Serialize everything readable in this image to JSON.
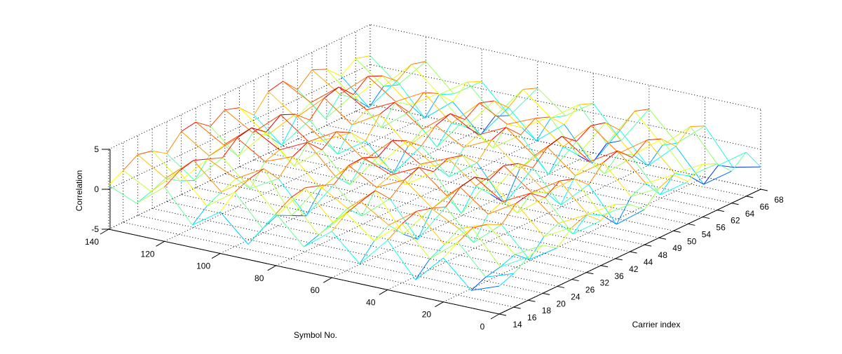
{
  "chart_data": {
    "type": "mesh3d",
    "title": "",
    "xlabel": "Symbol No.",
    "ylabel": "Carrier index",
    "zlabel": "Correlation",
    "x_ticks": [
      "0",
      "20",
      "40",
      "60",
      "80",
      "100",
      "120",
      "140"
    ],
    "y_ticks": [
      "14",
      "16",
      "18",
      "20",
      "24",
      "26",
      "32",
      "36",
      "42",
      "44",
      "48",
      "49",
      "50",
      "54",
      "56",
      "62",
      "64",
      "66",
      "68"
    ],
    "z_ticks": [
      "-5",
      "0",
      "5"
    ],
    "xlim": [
      0,
      140
    ],
    "zlim": [
      -5,
      5
    ],
    "grid": true,
    "colormap": "jet",
    "symbols": [
      0,
      10,
      20,
      30,
      40,
      50,
      60,
      70,
      80,
      90,
      100,
      110,
      120,
      130,
      140
    ],
    "carriers": [
      14,
      16,
      18,
      20,
      24,
      26,
      32,
      36,
      42,
      44,
      48,
      49,
      50,
      54,
      56,
      62,
      64,
      66,
      68
    ],
    "z": [
      [
        -1.5,
        -2.8,
        0.5,
        -3.0,
        1.2,
        -2.5,
        0.8,
        -1.9,
        1.5,
        -3.1,
        0.2,
        -2.2,
        1.8,
        -1.0,
        0.5
      ],
      [
        -0.8,
        -2.0,
        1.6,
        -1.2,
        2.4,
        -0.5,
        2.2,
        -1.3,
        2.6,
        -2.0,
        1.8,
        -0.7,
        2.9,
        -0.4,
        1.5
      ],
      [
        0.4,
        -1.6,
        2.5,
        -0.3,
        3.1,
        0.6,
        2.8,
        -0.6,
        3.0,
        -1.2,
        2.6,
        0.2,
        3.4,
        0.4,
        2.6
      ],
      [
        1.0,
        -0.9,
        2.1,
        0.8,
        2.6,
        -1.4,
        3.3,
        0.3,
        2.4,
        -2.1,
        3.0,
        1.0,
        2.7,
        -0.8,
        2.2
      ],
      [
        -0.2,
        -2.4,
        1.2,
        -1.8,
        1.9,
        -2.9,
        1.4,
        -1.5,
        1.7,
        -3.0,
        0.9,
        -1.1,
        2.0,
        -1.6,
        1.0
      ],
      [
        1.5,
        -0.4,
        3.0,
        0.9,
        3.5,
        0.1,
        2.9,
        1.2,
        3.2,
        -0.5,
        2.8,
        1.4,
        3.6,
        0.6,
        2.9
      ],
      [
        2.2,
        0.4,
        3.4,
        1.6,
        3.9,
        0.8,
        3.6,
        1.9,
        3.3,
        0.2,
        3.7,
        2.0,
        4.0,
        1.1,
        3.2
      ],
      [
        0.6,
        -1.8,
        2.0,
        -0.7,
        2.7,
        -2.3,
        2.2,
        -0.2,
        2.5,
        -1.7,
        1.9,
        -0.9,
        2.6,
        -1.2,
        1.8
      ],
      [
        1.8,
        -0.2,
        3.2,
        1.0,
        3.6,
        0.3,
        3.0,
        1.5,
        3.7,
        0.5,
        3.3,
        1.3,
        3.9,
        0.9,
        3.0
      ],
      [
        0.9,
        -1.2,
        2.6,
        0.1,
        3.0,
        -1.6,
        2.5,
        0.4,
        2.8,
        -1.0,
        2.3,
        0.6,
        3.1,
        -0.3,
        2.4
      ],
      [
        -0.6,
        -3.2,
        1.0,
        -2.3,
        1.6,
        -3.6,
        0.7,
        -1.8,
        1.3,
        -2.9,
        0.4,
        -2.0,
        1.5,
        -2.4,
        0.6
      ],
      [
        1.2,
        -0.6,
        2.9,
        0.5,
        3.3,
        -0.2,
        2.7,
        1.0,
        3.0,
        -0.4,
        2.9,
        0.8,
        3.4,
        0.2,
        2.7
      ],
      [
        2.0,
        0.2,
        3.5,
        1.4,
        3.8,
        0.6,
        3.4,
        1.7,
        3.6,
        0.9,
        3.5,
        1.8,
        3.9,
        1.2,
        3.1
      ],
      [
        0.3,
        -2.1,
        1.8,
        -1.0,
        2.3,
        -2.6,
        1.6,
        -0.8,
        2.0,
        -2.2,
        1.4,
        -1.3,
        2.1,
        -1.7,
        1.2
      ],
      [
        1.6,
        -0.3,
        3.1,
        0.7,
        3.4,
        0.0,
        2.8,
        1.3,
        3.2,
        -0.1,
        3.0,
        1.1,
        3.5,
        0.5,
        2.8
      ],
      [
        0.8,
        -1.5,
        2.4,
        -0.4,
        2.9,
        -1.9,
        2.1,
        0.0,
        2.6,
        -1.4,
        2.0,
        -0.2,
        2.7,
        -0.9,
        2.0
      ],
      [
        -1.0,
        -3.4,
        0.6,
        -2.6,
        1.1,
        -3.8,
        0.3,
        -2.5,
        0.9,
        -3.3,
        0.1,
        -2.7,
        1.2,
        -2.9,
        0.3
      ],
      [
        0.5,
        -1.9,
        2.2,
        -0.9,
        2.6,
        -2.2,
        1.9,
        -0.5,
        2.3,
        -1.8,
        1.7,
        -0.6,
        2.4,
        -1.1,
        1.6
      ],
      [
        -2.2,
        -3.0,
        1.4,
        -1.5,
        2.0,
        -2.7,
        1.2,
        -1.1,
        1.6,
        -2.6,
        0.9,
        -1.4,
        1.9,
        -1.8,
        1.1
      ]
    ]
  }
}
